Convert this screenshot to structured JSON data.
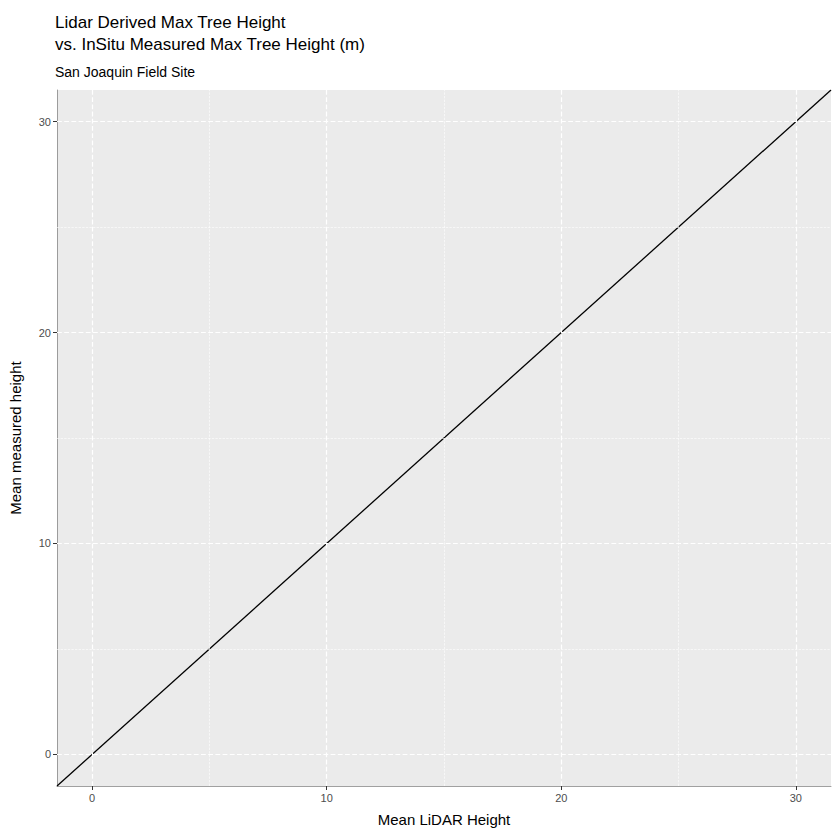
{
  "chart_data": {
    "type": "line",
    "title": "Lidar Derived Max Tree Height\nvs. InSitu Measured Max Tree Height (m)",
    "subtitle": "San Joaquin Field Site",
    "x_label": "Mean LiDAR Height",
    "y_label": "Mean measured height",
    "x": [
      -1.5,
      31.5
    ],
    "values": [
      -1.5,
      31.5
    ],
    "color": "#000000",
    "xlim": [
      -1.5,
      31.5
    ],
    "ylim": [
      -1.5,
      31.5
    ],
    "xticks": [
      0,
      10,
      20,
      30
    ],
    "yticks": [
      0,
      10,
      20,
      30
    ],
    "grid": true
  }
}
